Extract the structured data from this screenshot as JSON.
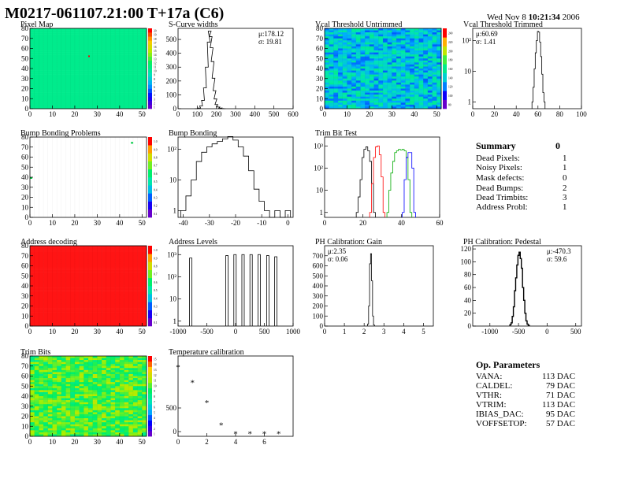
{
  "header": {
    "title": "M0217-061107.21:00 T+17a (C6)",
    "date_prefix": "Wed Nov  8 ",
    "date_time": "10:21:34",
    "date_year": " 2006"
  },
  "chart_data": [
    {
      "id": "pixel_map",
      "type": "heatmap",
      "title": "Pixel Map",
      "xlim": [
        0,
        52
      ],
      "ylim": [
        0,
        80
      ],
      "xticks": [
        "0",
        "10",
        "20",
        "30",
        "40",
        "50"
      ],
      "yticks": [
        "0",
        "10",
        "20",
        "30",
        "40",
        "50",
        "60",
        "70",
        "80"
      ],
      "scale": [
        "1",
        "2",
        "3",
        "4",
        "5",
        "6",
        "7",
        "8",
        "9",
        "10",
        "11",
        "12",
        "13",
        "14",
        "15",
        "16",
        "17",
        "18",
        "19",
        "20"
      ]
    },
    {
      "id": "scurve",
      "type": "histogram",
      "title": "S-Curve widths",
      "xlim": [
        0,
        600
      ],
      "ylim": [
        0,
        580
      ],
      "logy": false,
      "xticks": [
        "0",
        "100",
        "200",
        "300",
        "400",
        "500",
        "600"
      ],
      "yticks": [
        "0",
        "100",
        "200",
        "300",
        "400",
        "500"
      ],
      "stat1": "μ:178.12",
      "stat2": "σ: 19.81",
      "x": [
        95,
        110,
        120,
        130,
        140,
        150,
        160,
        165,
        170,
        175,
        180,
        185,
        190,
        195,
        200,
        210,
        220,
        230,
        240
      ],
      "values": [
        0,
        5,
        20,
        60,
        150,
        300,
        480,
        560,
        520,
        440,
        340,
        220,
        130,
        70,
        30,
        12,
        5,
        1,
        0
      ]
    },
    {
      "id": "vcal_untrimmed",
      "type": "heatmap",
      "title": "Vcal Threshold Untrimmed",
      "xlim": [
        0,
        52
      ],
      "ylim": [
        0,
        80
      ],
      "xticks": [
        "0",
        "10",
        "20",
        "30",
        "40",
        "50"
      ],
      "yticks": [
        "0",
        "10",
        "20",
        "30",
        "40",
        "50",
        "60",
        "70",
        "80"
      ],
      "scale": [
        "80",
        "100",
        "120",
        "140",
        "160",
        "180",
        "200",
        "220",
        "240"
      ]
    },
    {
      "id": "vcal_trimmed",
      "type": "histogram",
      "title": "Vcal Threshold Trimmed",
      "xlim": [
        0,
        100
      ],
      "logy": true,
      "xticks": [
        "0",
        "20",
        "40",
        "60",
        "80",
        "100"
      ],
      "yticks": [
        "1",
        "10",
        "10²"
      ],
      "stat1": "μ:60.69",
      "stat2": "σ: 1.41",
      "x": [
        55,
        56,
        57,
        58,
        59,
        60,
        61,
        62,
        63,
        64,
        65,
        66
      ],
      "values": [
        1,
        3,
        12,
        40,
        100,
        200,
        190,
        90,
        30,
        8,
        2,
        1
      ]
    },
    {
      "id": "bump_map",
      "type": "heatmap",
      "title": "Bump Bonding Problems",
      "xlim": [
        0,
        52
      ],
      "ylim": [
        0,
        80
      ],
      "xticks": [
        "0",
        "10",
        "20",
        "30",
        "40",
        "50"
      ],
      "yticks": [
        "0",
        "10",
        "20",
        "30",
        "40",
        "50",
        "60",
        "70",
        "80"
      ],
      "scale": [
        "0.1",
        "0.2",
        "0.3",
        "0.4",
        "0.5",
        "0.6",
        "0.7",
        "0.8",
        "0.9",
        "1.0"
      ]
    },
    {
      "id": "bump_hist",
      "type": "histogram",
      "title": "Bump Bonding",
      "xlim": [
        -42,
        2
      ],
      "logy": true,
      "xticks": [
        "-40",
        "-30",
        "-20",
        "-10",
        "0"
      ],
      "yticks": [
        "1",
        "10",
        "10²"
      ],
      "x": [
        -40,
        -38,
        -36,
        -34,
        -32,
        -30,
        -28,
        -26,
        -24,
        -22,
        -20,
        -18,
        -16,
        -14,
        -12,
        -10,
        -8,
        -6,
        -4,
        -2,
        0
      ],
      "values": [
        1,
        3,
        10,
        40,
        80,
        120,
        150,
        180,
        220,
        260,
        200,
        120,
        60,
        20,
        5,
        2,
        1,
        0,
        1,
        0,
        1
      ]
    },
    {
      "id": "trim_bit_test",
      "type": "histogram",
      "title": "Trim Bit Test",
      "xlim": [
        0,
        60
      ],
      "logy": true,
      "xticks": [
        "0",
        "20",
        "40",
        "60"
      ],
      "yticks": [
        "1",
        "10",
        "10²",
        "10³"
      ],
      "series": [
        {
          "name": "bit1",
          "color": "#000000",
          "x": [
            17,
            18,
            19,
            20,
            21,
            22,
            23,
            24,
            25,
            26
          ],
          "values": [
            1,
            5,
            30,
            300,
            700,
            900,
            600,
            200,
            20,
            1
          ]
        },
        {
          "name": "bit2",
          "color": "#ff0000",
          "x": [
            24,
            25,
            26,
            27,
            28,
            29,
            30,
            31
          ],
          "values": [
            1,
            20,
            300,
            900,
            1000,
            400,
            40,
            1
          ]
        },
        {
          "name": "bit3",
          "color": "#00aa00",
          "x": [
            33,
            34,
            35,
            36,
            37,
            38,
            39,
            40,
            41,
            42,
            43,
            44,
            45
          ],
          "values": [
            1,
            10,
            60,
            200,
            500,
            600,
            700,
            650,
            700,
            600,
            300,
            30,
            1
          ]
        },
        {
          "name": "bit4",
          "color": "#0000ff",
          "x": [
            41,
            42,
            43,
            44,
            45,
            46,
            47
          ],
          "values": [
            1,
            30,
            300,
            500,
            500,
            100,
            1
          ]
        }
      ]
    },
    {
      "id": "addr_map",
      "type": "heatmap",
      "title": "Address decoding",
      "xlim": [
        0,
        52
      ],
      "ylim": [
        0,
        80
      ],
      "xticks": [
        "0",
        "10",
        "20",
        "30",
        "40",
        "50"
      ],
      "yticks": [
        "0",
        "10",
        "20",
        "30",
        "40",
        "50",
        "60",
        "70",
        "80"
      ],
      "scale": [
        "0.1",
        "0.2",
        "0.3",
        "0.4",
        "0.5",
        "0.6",
        "0.7",
        "0.8",
        "0.9",
        "1.0"
      ]
    },
    {
      "id": "addr_levels",
      "type": "histogram",
      "title": "Address Levels",
      "xlim": [
        -1000,
        1000
      ],
      "logy": true,
      "xticks": [
        "-1000",
        "-500",
        "0",
        "500",
        "1000"
      ],
      "yticks": [
        "1",
        "10",
        "10²",
        "10³"
      ],
      "x": [
        -780,
        -150,
        -10,
        130,
        270,
        410,
        560,
        700
      ],
      "values": [
        700,
        900,
        1000,
        1000,
        1000,
        1000,
        900,
        800
      ]
    },
    {
      "id": "ph_gain",
      "type": "histogram",
      "title": "PH Calibration: Gain",
      "xlim": [
        0,
        5.5
      ],
      "ylim": [
        0,
        800
      ],
      "logy": false,
      "xticks": [
        "0",
        "1",
        "2",
        "3",
        "4",
        "5"
      ],
      "yticks": [
        "0",
        "100",
        "200",
        "300",
        "400",
        "500",
        "600",
        "700"
      ],
      "stat1": "μ:2.35",
      "stat2": "σ: 0.06",
      "x": [
        2.2,
        2.25,
        2.3,
        2.35,
        2.4,
        2.45,
        2.5
      ],
      "values": [
        20,
        200,
        620,
        720,
        450,
        100,
        10
      ]
    },
    {
      "id": "ph_pedestal",
      "type": "histogram",
      "title": "PH Calibration: Pedestal",
      "xlim": [
        -1300,
        600
      ],
      "ylim": [
        0,
        125
      ],
      "logy": false,
      "xticks": [
        "-1000",
        "-500",
        "0",
        "500"
      ],
      "yticks": [
        "0",
        "20",
        "40",
        "60",
        "80",
        "100",
        "120"
      ],
      "stat1": "μ:-470.3",
      "stat2": "σ: 59.6",
      "x": [
        -640,
        -620,
        -600,
        -580,
        -560,
        -540,
        -520,
        -500,
        -480,
        -460,
        -440,
        -420,
        -400,
        -380,
        -360,
        -340,
        -320
      ],
      "values": [
        2,
        5,
        15,
        30,
        55,
        75,
        95,
        110,
        115,
        105,
        90,
        60,
        40,
        20,
        8,
        3,
        1
      ]
    },
    {
      "id": "trim_bits_map",
      "type": "heatmap",
      "title": "Trim Bits",
      "xlim": [
        0,
        52
      ],
      "ylim": [
        0,
        80
      ],
      "xticks": [
        "0",
        "10",
        "20",
        "30",
        "40",
        "50"
      ],
      "yticks": [
        "0",
        "10",
        "20",
        "30",
        "40",
        "50",
        "60",
        "70",
        "80"
      ],
      "scale": [
        "1",
        "2",
        "3",
        "4",
        "5",
        "6",
        "7",
        "8",
        "9",
        "10",
        "11",
        "12",
        "13",
        "14",
        "15"
      ]
    },
    {
      "id": "temp_cal",
      "type": "scatter",
      "title": "Temperature calibration",
      "xlim": [
        0,
        8
      ],
      "ylim": [
        -100,
        1600
      ],
      "xticks": [
        "0",
        "2",
        "4",
        "6"
      ],
      "yticks": [
        "0",
        "500"
      ],
      "x": [
        0,
        1,
        2,
        3,
        4,
        5,
        6,
        7
      ],
      "values": [
        1370,
        1040,
        620,
        140,
        -40,
        -40,
        -40,
        -40
      ]
    }
  ],
  "summary": {
    "heading": "Summary",
    "total": "0",
    "rows": [
      {
        "label": "Dead Pixels:",
        "value": "1"
      },
      {
        "label": "Noisy Pixels:",
        "value": "1"
      },
      {
        "label": "Mask defects:",
        "value": "0"
      },
      {
        "label": "Dead Bumps:",
        "value": "2"
      },
      {
        "label": "Dead Trimbits:",
        "value": "3"
      },
      {
        "label": "Address Probl:",
        "value": "1"
      }
    ]
  },
  "op_params": {
    "heading": "Op. Parameters",
    "rows": [
      {
        "label": "VANA:",
        "value": "113 DAC"
      },
      {
        "label": "CALDEL:",
        "value": "79 DAC"
      },
      {
        "label": "VTHR:",
        "value": "71 DAC"
      },
      {
        "label": "VTRIM:",
        "value": "113 DAC"
      },
      {
        "label": "IBIAS_DAC:",
        "value": "95 DAC"
      },
      {
        "label": "VOFFSETOP:",
        "value": "57 DAC"
      }
    ]
  }
}
